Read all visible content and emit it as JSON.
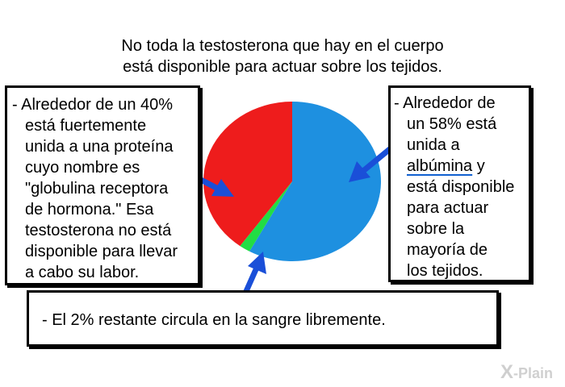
{
  "title": {
    "line1": "No toda la testosterona que hay en el cuerpo",
    "line2": "está disponible para actuar sobre los tejidos."
  },
  "left_box": {
    "lines": [
      "- Alrededor de un 40%",
      "está fuertemente",
      "unida a una proteína",
      "cuyo nombre es",
      "\"globulina receptora",
      "de hormona.\" Esa",
      "testosterona no está",
      "disponible para llevar",
      "a cabo su labor."
    ]
  },
  "right_box": {
    "line1": "- Alrededor de",
    "line2": "un 58% está",
    "line3": "unida a",
    "line4_link": "albúmina",
    "line4_rest": " y",
    "line5": "está disponible",
    "line6": "para actuar",
    "line7": "sobre la",
    "line8": "mayoría de",
    "line9": "los tejidos."
  },
  "bottom_box": {
    "text": "- El 2% restante circula en la sangre libremente."
  },
  "pie": {
    "slices": [
      {
        "name": "albúmina",
        "percent": 58,
        "color": "#1e90e0"
      },
      {
        "name": "libre",
        "percent": 2,
        "color": "#22dd44"
      },
      {
        "name": "globulina receptora de hormona",
        "percent": 40,
        "color": "#ee1c1c"
      }
    ]
  },
  "colors": {
    "arrow": "#1a4fd8",
    "underline": "#1060d0"
  },
  "logo": {
    "mark": "X",
    "text": "-Plain"
  }
}
